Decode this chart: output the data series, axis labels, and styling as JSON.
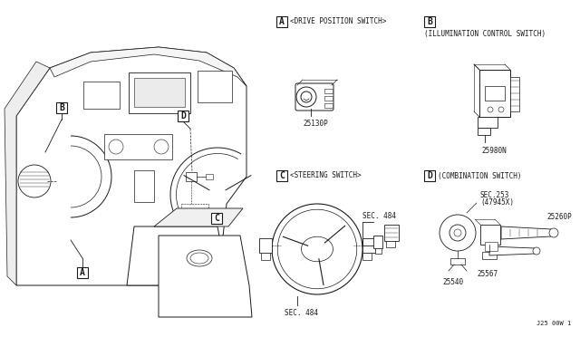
{
  "bg_color": "#ffffff",
  "line_color": "#1a1a1a",
  "fig_width": 6.4,
  "fig_height": 3.72,
  "dpi": 100,
  "labels": {
    "A_text": "<DRIVE POSITION SWITCH>",
    "B_text": "(ILLUMINATION CONTROL SWITCH)",
    "C_text": "<STEERING SWITCH>",
    "D_text": "(COMBINATION SWITCH)",
    "part_A": "25130P",
    "part_B": "25980N",
    "sec484a": "SEC. 484",
    "sec484b": "SEC. 484",
    "sec253": "SEC.253",
    "part47945": "(47945X)",
    "part_25260P": "25260P",
    "part_25540": "25540",
    "part_25567": "25567",
    "watermark": "J25 00W 1"
  },
  "font_size_label": 5.5,
  "font_size_box": 7,
  "font_size_part": 5.5,
  "font_size_watermark": 5
}
